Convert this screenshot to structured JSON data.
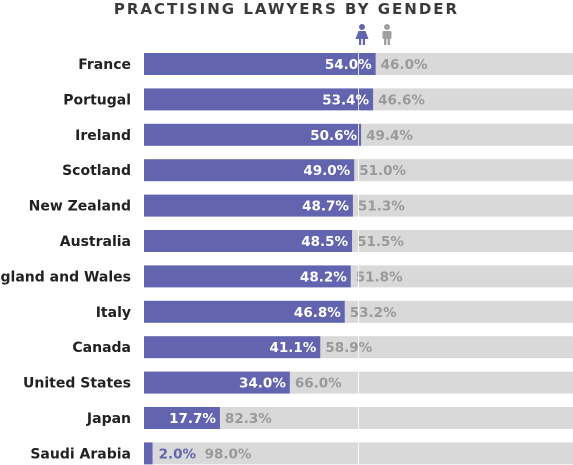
{
  "chart_data": {
    "type": "bar",
    "stacked": true,
    "orientation": "horizontal",
    "title": "PRACTISING LAWYERS BY GENDER",
    "categories": [
      "France",
      "Portugal",
      "Ireland",
      "Scotland",
      "New Zealand",
      "Australia",
      "England and Wales",
      "Italy",
      "Canada",
      "United States",
      "Japan",
      "Saudi Arabia"
    ],
    "series": [
      {
        "icon": "female-icon",
        "color": "#6264b0",
        "values": [
          54.0,
          53.4,
          50.6,
          49.0,
          48.7,
          48.5,
          48.2,
          46.8,
          41.1,
          34.0,
          17.7,
          2.0
        ]
      },
      {
        "icon": "male-icon",
        "color": "#d9d9d9",
        "values": [
          46.0,
          46.6,
          49.4,
          51.0,
          51.3,
          51.5,
          51.8,
          53.2,
          58.9,
          66.0,
          82.3,
          98.0
        ]
      }
    ],
    "value_labels_female": [
      "54.0%",
      "53.4%",
      "50.6%",
      "49.0%",
      "48.7%",
      "48.5%",
      "48.2%",
      "46.8%",
      "41.1%",
      "34.0%",
      "17.7%",
      "2.0%"
    ],
    "value_labels_male": [
      "46.0%",
      "46.6%",
      "49.4%",
      "51.0%",
      "51.3%",
      "51.5%",
      "51.8%",
      "53.2%",
      "58.9%",
      "66.0%",
      "82.3%",
      "98.0%"
    ],
    "xlim": [
      0,
      100
    ],
    "reference_line": 50,
    "label_text_colors": {
      "female_inside": "#ffffff",
      "female_outside": "#6264b0",
      "male": "#999999"
    }
  }
}
